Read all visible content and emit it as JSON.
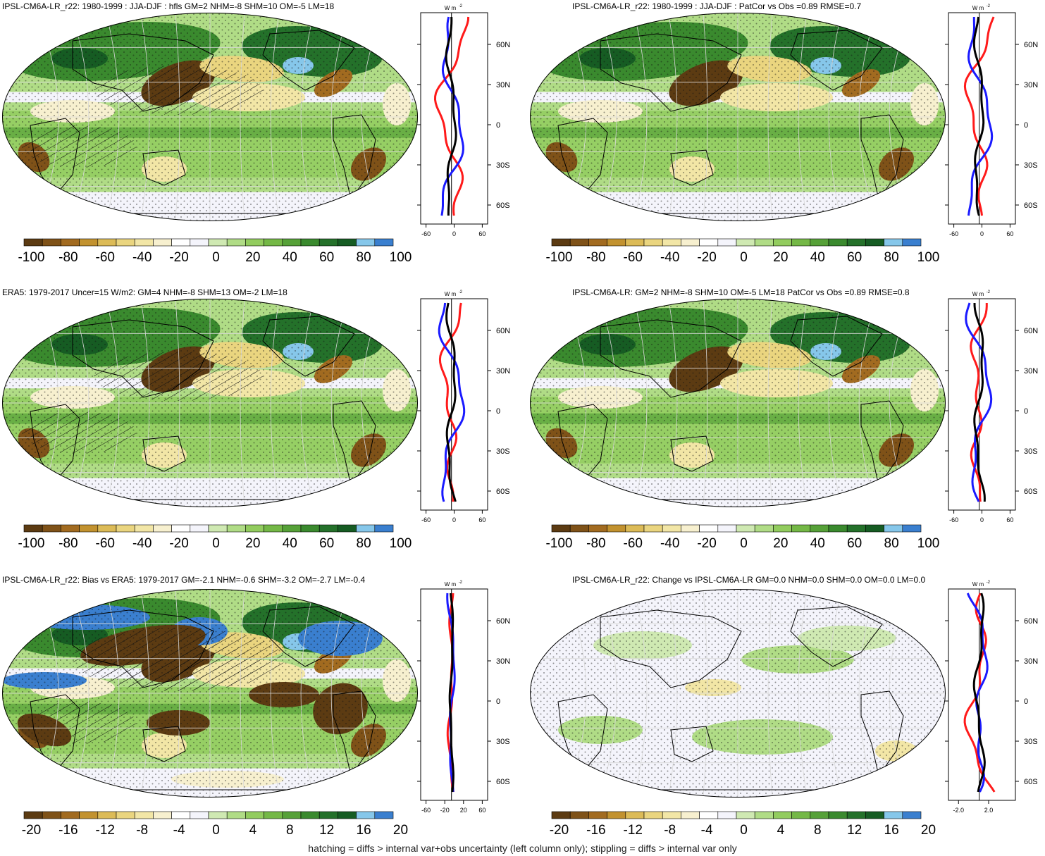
{
  "footer": "hatching = diffs > internal var+obs uncertainty (left column only); stippling = diffs > internal var only",
  "palette": [
    "#5c3b12",
    "#7f5218",
    "#a26b20",
    "#c2922f",
    "#dcbb57",
    "#ead57f",
    "#f2e6a6",
    "#f7f0cf",
    "#ffffff",
    "#f4f4fb",
    "#cfe9b2",
    "#b0dc86",
    "#92cc5e",
    "#74b846",
    "#56a138",
    "#3a8a2e",
    "#24712a",
    "#165c23",
    "#86c7ea",
    "#3a7fcf"
  ],
  "line_colors": {
    "black": "#000000",
    "red": "#ff1a1a",
    "blue": "#1a1aff"
  },
  "profile_unit": "W m",
  "profile_unit_sup": "-2",
  "lat_labels": [
    "60N",
    "30N",
    "0",
    "30S",
    "60S"
  ],
  "panels": [
    {
      "title": "IPSL-CM6A-LR_r22: 1980-1999 : JJA-DJF : hfls GM=2 NHM=-8 SHM=10 OM=-5 LM=18",
      "colorbar_labels": [
        "-100",
        "-80",
        "-60",
        "-40",
        "-20",
        "0",
        "20",
        "40",
        "60",
        "80",
        "100"
      ],
      "profile_ticks": [
        "-60",
        "0",
        "60"
      ],
      "hatch": true,
      "bias": false
    },
    {
      "title": "IPSL-CM6A-LR_r22: 1980-1999 : JJA-DJF : PatCor vs Obs =0.89 RMSE=0.7",
      "colorbar_labels": [
        "-100",
        "-80",
        "-60",
        "-40",
        "-20",
        "0",
        "20",
        "40",
        "60",
        "80",
        "100"
      ],
      "profile_ticks": [
        "-60",
        "0",
        "60"
      ],
      "hatch": false,
      "bias": false
    },
    {
      "title": "ERA5: 1979-2017 Uncer=15 W/m2: GM=4 NHM=-8 SHM=13 OM=-2 LM=18",
      "colorbar_labels": [
        "-100",
        "-80",
        "-60",
        "-40",
        "-20",
        "0",
        "20",
        "40",
        "60",
        "80",
        "100"
      ],
      "profile_ticks": [
        "-60",
        "0",
        "60"
      ],
      "hatch": true,
      "bias": false
    },
    {
      "title": "IPSL-CM6A-LR: GM=2 NHM=-8 SHM=10 OM=-5 LM=18 PatCor vs Obs =0.89 RMSE=0.8",
      "colorbar_labels": [
        "-100",
        "-80",
        "-60",
        "-40",
        "-20",
        "0",
        "20",
        "40",
        "60",
        "80",
        "100"
      ],
      "profile_ticks": [
        "-60",
        "0",
        "60"
      ],
      "hatch": false,
      "bias": false
    },
    {
      "title": "IPSL-CM6A-LR_r22: Bias vs ERA5: 1979-2017 GM=-2.1 NHM=-0.6 SHM=-3.2 OM=-2.7 LM=-0.4",
      "colorbar_labels": [
        "-20",
        "-16",
        "-12",
        "-8",
        "-4",
        "0",
        "4",
        "8",
        "12",
        "16",
        "20"
      ],
      "profile_ticks": [
        "-60",
        "-20",
        "20",
        "60"
      ],
      "hatch": true,
      "bias": true
    },
    {
      "title": "IPSL-CM6A-LR_r22: Change vs IPSL-CM6A-LR GM=0.0 NHM=0.0 SHM=0.0 OM=0.0 LM=0.0",
      "colorbar_labels": [
        "-20",
        "-16",
        "-12",
        "-8",
        "-4",
        "0",
        "4",
        "8",
        "12",
        "16",
        "20"
      ],
      "profile_ticks": [
        "-2.0",
        "2.0"
      ],
      "hatch": false,
      "bias": false,
      "change": true
    }
  ]
}
